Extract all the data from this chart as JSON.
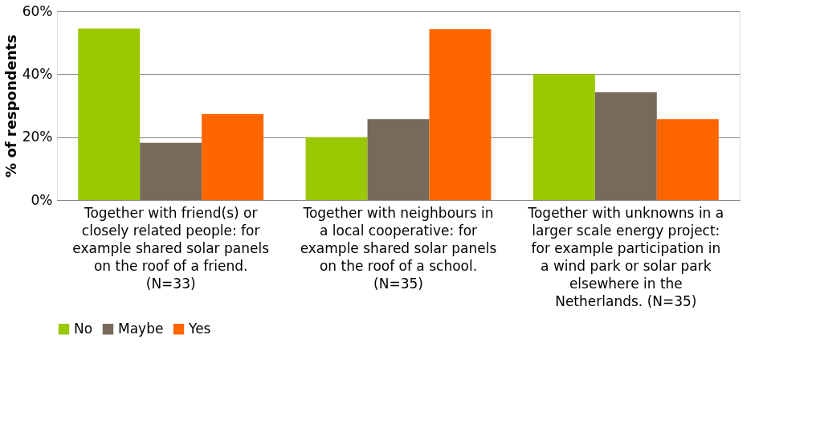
{
  "chart_data": {
    "type": "bar",
    "ylabel": "% of respondents",
    "categories": [
      "Together with friend(s) or closely related people: for example shared solar panels on the roof of a friend. (N=33)",
      "Together with neighbours in a local cooperative: for example shared solar panels on the roof of a school. (N=35)",
      "Together with unknowns in a larger scale energy project: for example participation in a wind park or solar park elsewhere in the Netherlands. (N=35)"
    ],
    "series": [
      {
        "name": "No",
        "color": "#99c800",
        "values": [
          54.5,
          20.0,
          40.0
        ]
      },
      {
        "name": "Maybe",
        "color": "#776a5a",
        "values": [
          18.2,
          25.7,
          34.3
        ]
      },
      {
        "name": "Yes",
        "color": "#ff6600",
        "values": [
          27.3,
          54.3,
          25.7
        ]
      }
    ],
    "ylim": [
      0,
      60
    ],
    "yticks": [
      {
        "value": 0,
        "label": "0%"
      },
      {
        "value": 20,
        "label": "20%"
      },
      {
        "value": 40,
        "label": "40%"
      },
      {
        "value": 60,
        "label": "60%"
      }
    ],
    "grid": "y",
    "legend": "bottom"
  }
}
